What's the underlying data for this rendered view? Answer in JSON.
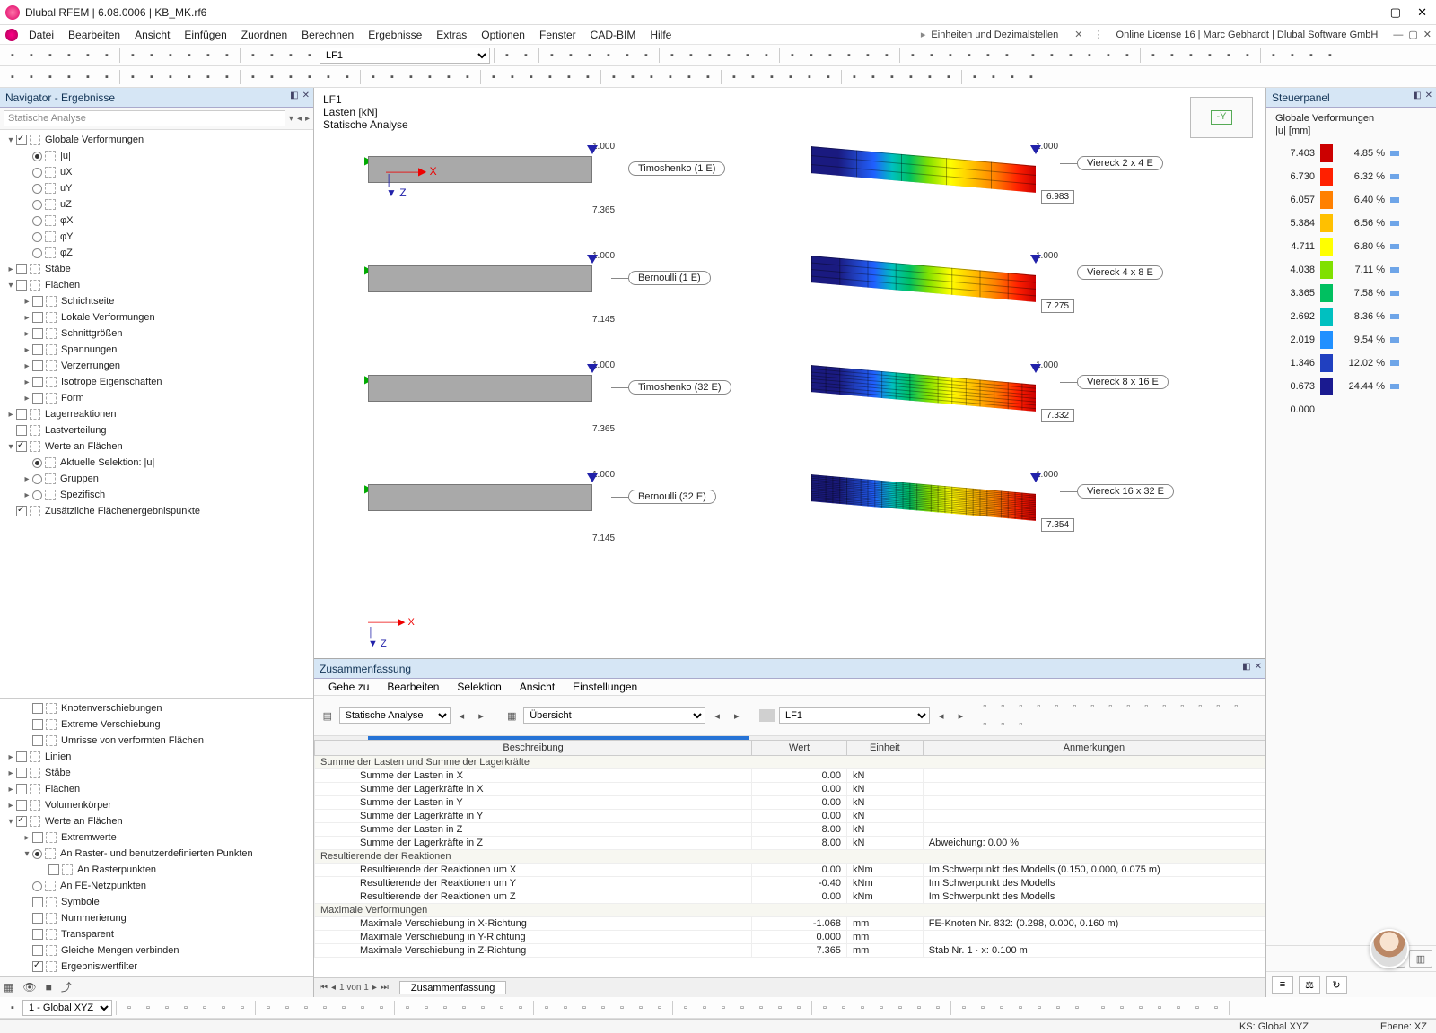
{
  "title": "Dlubal RFEM | 6.08.0006 | KB_MK.rf6",
  "menus": [
    "Datei",
    "Bearbeiten",
    "Ansicht",
    "Einfügen",
    "Zuordnen",
    "Berechnen",
    "Ergebnisse",
    "Extras",
    "Optionen",
    "Fenster",
    "CAD-BIM",
    "Hilfe"
  ],
  "notice1": "Einheiten und Dezimalstellen",
  "notice2": "Online License 16 | Marc Gebhardt | Dlubal Software GmbH",
  "toolbar2": {
    "loadcombo": "LF1"
  },
  "navigator": {
    "title": "Navigator - Ergebnisse",
    "search": "Statische Analyse",
    "top": [
      {
        "d": 0,
        "tw": "▾",
        "cb": true,
        "ic": 1,
        "t": "Globale Verformungen"
      },
      {
        "d": 1,
        "rd": true,
        "ic": 1,
        "t": "|u|"
      },
      {
        "d": 1,
        "rd": false,
        "ic": 1,
        "t": "uX"
      },
      {
        "d": 1,
        "rd": false,
        "ic": 1,
        "t": "uY"
      },
      {
        "d": 1,
        "rd": false,
        "ic": 1,
        "t": "uZ"
      },
      {
        "d": 1,
        "rd": false,
        "ic": 1,
        "t": "φX"
      },
      {
        "d": 1,
        "rd": false,
        "ic": 1,
        "t": "φY"
      },
      {
        "d": 1,
        "rd": false,
        "ic": 1,
        "t": "φZ"
      },
      {
        "d": 0,
        "tw": "▸",
        "cb": false,
        "ic": 1,
        "t": "Stäbe"
      },
      {
        "d": 0,
        "tw": "▾",
        "cb": false,
        "ic": 1,
        "t": "Flächen"
      },
      {
        "d": 1,
        "tw": "▸",
        "cb": false,
        "ic": 1,
        "t": "Schichtseite"
      },
      {
        "d": 1,
        "tw": "▸",
        "cb": false,
        "ic": 1,
        "t": "Lokale Verformungen"
      },
      {
        "d": 1,
        "tw": "▸",
        "cb": false,
        "ic": 1,
        "t": "Schnittgrößen"
      },
      {
        "d": 1,
        "tw": "▸",
        "cb": false,
        "ic": 1,
        "t": "Spannungen"
      },
      {
        "d": 1,
        "tw": "▸",
        "cb": false,
        "ic": 1,
        "t": "Verzerrungen"
      },
      {
        "d": 1,
        "tw": "▸",
        "cb": false,
        "ic": 1,
        "t": "Isotrope Eigenschaften"
      },
      {
        "d": 1,
        "tw": "▸",
        "cb": false,
        "ic": 1,
        "t": "Form"
      },
      {
        "d": 0,
        "tw": "▸",
        "cb": false,
        "ic": 1,
        "t": "Lagerreaktionen"
      },
      {
        "d": 0,
        "tw": "",
        "cb": false,
        "ic": 1,
        "t": "Lastverteilung"
      },
      {
        "d": 0,
        "tw": "▾",
        "cb": true,
        "ic": 1,
        "t": "Werte an Flächen"
      },
      {
        "d": 1,
        "rd": true,
        "ic": 1,
        "t": "Aktuelle Selektion: |u|"
      },
      {
        "d": 1,
        "tw": "▸",
        "rd": false,
        "ic": 1,
        "t": "Gruppen"
      },
      {
        "d": 1,
        "tw": "▸",
        "rd": false,
        "ic": 1,
        "t": "Spezifisch"
      },
      {
        "d": 0,
        "tw": "",
        "cb": true,
        "ic": 1,
        "t": "Zusätzliche Flächenergebnispunkte"
      }
    ],
    "bottom": [
      {
        "d": 1,
        "cb": false,
        "ic": 1,
        "t": "Knotenverschiebungen"
      },
      {
        "d": 1,
        "cb": false,
        "ic": 1,
        "t": "Extreme Verschiebung"
      },
      {
        "d": 1,
        "cb": false,
        "ic": 1,
        "t": "Umrisse von verformten Flächen"
      },
      {
        "d": 0,
        "tw": "▸",
        "cb": false,
        "ic": 1,
        "t": "Linien"
      },
      {
        "d": 0,
        "tw": "▸",
        "cb": false,
        "ic": 1,
        "t": "Stäbe"
      },
      {
        "d": 0,
        "tw": "▸",
        "cb": false,
        "ic": 1,
        "t": "Flächen"
      },
      {
        "d": 0,
        "tw": "▸",
        "cb": false,
        "ic": 1,
        "t": "Volumenkörper"
      },
      {
        "d": 0,
        "tw": "▾",
        "cb": true,
        "ic": 1,
        "t": "Werte an Flächen"
      },
      {
        "d": 1,
        "tw": "▸",
        "cb": false,
        "ic": 1,
        "t": "Extremwerte"
      },
      {
        "d": 1,
        "tw": "▾",
        "rd": true,
        "ic": 1,
        "t": "An Raster- und benutzerdefinierten Punkten"
      },
      {
        "d": 2,
        "cb": false,
        "ic": 1,
        "t": "An Rasterpunkten"
      },
      {
        "d": 1,
        "rd": false,
        "ic": 1,
        "t": "An FE-Netzpunkten"
      },
      {
        "d": 1,
        "cb": false,
        "ic": 1,
        "t": "Symbole"
      },
      {
        "d": 1,
        "cb": false,
        "ic": 1,
        "t": "Nummerierung"
      },
      {
        "d": 1,
        "cb": false,
        "ic": 1,
        "t": "Transparent"
      },
      {
        "d": 1,
        "cb": false,
        "ic": 1,
        "t": "Gleiche Mengen verbinden"
      },
      {
        "d": 1,
        "cb": true,
        "ic": 1,
        "t": "Ergebniswertfilter"
      }
    ]
  },
  "viewport": {
    "header": [
      "LF1",
      "Lasten [kN]",
      "Statische Analyse"
    ],
    "loadval": "1.000",
    "leftbeams": [
      {
        "label": "Timoshenko (1 E)",
        "disp": "7.365"
      },
      {
        "label": "Bernoulli (1 E)",
        "disp": "7.145"
      },
      {
        "label": "Timoshenko (32 E)",
        "disp": "7.365"
      },
      {
        "label": "Bernoulli (32 E)",
        "disp": "7.145"
      }
    ],
    "rightbeams": [
      {
        "label": "Viereck 2 x 4 E",
        "disp": "6.983",
        "gx": 5,
        "gy": 3
      },
      {
        "label": "Viereck 4 x 8 E",
        "disp": "7.275",
        "gx": 8,
        "gy": 4
      },
      {
        "label": "Viereck 8 x 16 E",
        "disp": "7.332",
        "gx": 16,
        "gy": 8
      },
      {
        "label": "Viereck 16 x 32 E",
        "disp": "7.354",
        "gx": 32,
        "gy": 16
      }
    ],
    "axislabel": "-Y"
  },
  "summary": {
    "title": "Zusammenfassung",
    "menu": [
      "Gehe zu",
      "Bearbeiten",
      "Selektion",
      "Ansicht",
      "Einstellungen"
    ],
    "combo1": "Statische Analyse",
    "combo2": "Übersicht",
    "combo3": "LF1",
    "headers": [
      "Beschreibung",
      "Wert",
      "Einheit",
      "Anmerkungen"
    ],
    "sections": [
      {
        "title": "Summe der Lasten und Summe der Lagerkräfte",
        "rows": [
          [
            "Summe der Lasten in X",
            "0.00",
            "kN",
            ""
          ],
          [
            "Summe der Lagerkräfte in X",
            "0.00",
            "kN",
            ""
          ],
          [
            "Summe der Lasten in Y",
            "0.00",
            "kN",
            ""
          ],
          [
            "Summe der Lagerkräfte in Y",
            "0.00",
            "kN",
            ""
          ],
          [
            "Summe der Lasten in Z",
            "8.00",
            "kN",
            ""
          ],
          [
            "Summe der Lagerkräfte in Z",
            "8.00",
            "kN",
            "Abweichung: 0.00 %"
          ]
        ]
      },
      {
        "title": "Resultierende der Reaktionen",
        "rows": [
          [
            "Resultierende der Reaktionen um X",
            "0.00",
            "kNm",
            "Im Schwerpunkt des Modells (0.150, 0.000, 0.075 m)"
          ],
          [
            "Resultierende der Reaktionen um Y",
            "-0.40",
            "kNm",
            "Im Schwerpunkt des Modells"
          ],
          [
            "Resultierende der Reaktionen um Z",
            "0.00",
            "kNm",
            "Im Schwerpunkt des Modells"
          ]
        ]
      },
      {
        "title": "Maximale Verformungen",
        "rows": [
          [
            "Maximale Verschiebung in X-Richtung",
            "-1.068",
            "mm",
            "FE-Knoten Nr. 832: (0.298, 0.000, 0.160 m)"
          ],
          [
            "Maximale Verschiebung in Y-Richtung",
            "0.000",
            "mm",
            ""
          ],
          [
            "Maximale Verschiebung in Z-Richtung",
            "7.365",
            "mm",
            "Stab Nr. 1 · x: 0.100 m"
          ]
        ]
      }
    ],
    "pager": "1 von 1",
    "tab": "Zusammenfassung"
  },
  "panel": {
    "title": "Steuerpanel",
    "subtitle": "Globale Verformungen",
    "unit": "|u| [mm]",
    "legend": [
      {
        "v": "7.403",
        "c": "#cc0000",
        "p": "4.85 %"
      },
      {
        "v": "6.730",
        "c": "#ff2000",
        "p": "6.32 %"
      },
      {
        "v": "6.057",
        "c": "#ff8000",
        "p": "6.40 %"
      },
      {
        "v": "5.384",
        "c": "#ffc000",
        "p": "6.56 %"
      },
      {
        "v": "4.711",
        "c": "#ffff00",
        "p": "6.80 %"
      },
      {
        "v": "4.038",
        "c": "#80e000",
        "p": "7.11 %"
      },
      {
        "v": "3.365",
        "c": "#00c060",
        "p": "7.58 %"
      },
      {
        "v": "2.692",
        "c": "#00c0c0",
        "p": "8.36 %"
      },
      {
        "v": "2.019",
        "c": "#2090ff",
        "p": "9.54 %"
      },
      {
        "v": "1.346",
        "c": "#2040c0",
        "p": "12.02 %"
      },
      {
        "v": "0.673",
        "c": "#1a1a90",
        "p": "24.44 %"
      },
      {
        "v": "0.000",
        "c": "",
        "p": ""
      }
    ]
  },
  "bottomtoolbar": {
    "combo": "1 - Global XYZ"
  },
  "statusbar": {
    "ks": "KS: Global XYZ",
    "ebene": "Ebene: XZ"
  }
}
